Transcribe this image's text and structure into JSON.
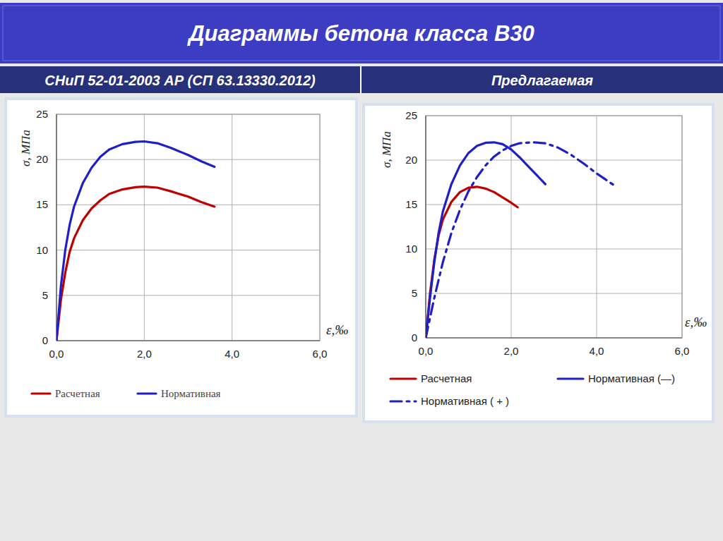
{
  "header": {
    "title": "Диаграммы бетона класса В30"
  },
  "chart_data": [
    {
      "type": "line",
      "title": "СНиП 52-01-2003 АР (СП 63.13330.2012)",
      "x_label": "ε,‰",
      "y_label": "σ, МПа",
      "xlim": [
        0,
        6
      ],
      "ylim": [
        0,
        25
      ],
      "xticks": [
        {
          "value": 0,
          "label": "0,0"
        },
        {
          "value": 2,
          "label": "2,0"
        },
        {
          "value": 4,
          "label": "4,0"
        },
        {
          "value": 6,
          "label": "6,0"
        }
      ],
      "yticks": [
        0,
        5,
        10,
        15,
        20,
        25
      ],
      "grid": true,
      "legend": "bottom",
      "series": [
        {
          "name": "Расчетная",
          "color": "#c00000",
          "line_style": "solid",
          "x": [
            0,
            0.1,
            0.2,
            0.3,
            0.4,
            0.6,
            0.8,
            1.0,
            1.2,
            1.5,
            1.8,
            2.0,
            2.3,
            2.6,
            3.0,
            3.3,
            3.6
          ],
          "values": [
            0,
            4.5,
            7.5,
            9.8,
            11.3,
            13.3,
            14.6,
            15.5,
            16.2,
            16.7,
            16.95,
            17.0,
            16.9,
            16.5,
            15.9,
            15.3,
            14.8
          ]
        },
        {
          "name": "Нормативная",
          "color": "#1f1fc8",
          "line_style": "solid",
          "x": [
            0,
            0.1,
            0.2,
            0.3,
            0.4,
            0.6,
            0.8,
            1.0,
            1.2,
            1.5,
            1.8,
            2.0,
            2.3,
            2.6,
            3.0,
            3.3,
            3.6
          ],
          "values": [
            0,
            6,
            10,
            12.8,
            14.8,
            17.4,
            19.1,
            20.3,
            21.1,
            21.7,
            21.95,
            22.0,
            21.8,
            21.3,
            20.5,
            19.8,
            19.2
          ]
        }
      ]
    },
    {
      "type": "line",
      "title": "Предлагаемая",
      "x_label": "ε,‰",
      "y_label": "σ, МПа",
      "xlim": [
        0,
        6
      ],
      "ylim": [
        0,
        25
      ],
      "xticks": [
        {
          "value": 0,
          "label": "0,0"
        },
        {
          "value": 2,
          "label": "2,0"
        },
        {
          "value": 4,
          "label": "4,0"
        },
        {
          "value": 6,
          "label": "6,0"
        }
      ],
      "yticks": [
        0,
        5,
        10,
        15,
        20,
        25
      ],
      "grid": true,
      "legend": "bottom",
      "series": [
        {
          "name": "Расчетная",
          "color": "#c00000",
          "line_style": "solid",
          "x": [
            0,
            0.1,
            0.2,
            0.3,
            0.4,
            0.6,
            0.8,
            1.0,
            1.2,
            1.4,
            1.6,
            1.8,
            2.0,
            2.15
          ],
          "values": [
            0,
            5,
            8.8,
            11.5,
            13.3,
            15.3,
            16.4,
            16.9,
            17.0,
            16.8,
            16.4,
            15.8,
            15.2,
            14.7
          ]
        },
        {
          "name": "Нормативная (—)",
          "color": "#1f1fc8",
          "line_style": "solid",
          "x": [
            0,
            0.1,
            0.2,
            0.3,
            0.4,
            0.6,
            0.8,
            1.0,
            1.2,
            1.4,
            1.6,
            1.8,
            2.0,
            2.2,
            2.4,
            2.6,
            2.8
          ],
          "values": [
            0,
            4.5,
            8.5,
            11.8,
            14.2,
            17.3,
            19.4,
            20.8,
            21.6,
            21.95,
            22.0,
            21.8,
            21.2,
            20.3,
            19.3,
            18.3,
            17.3
          ]
        },
        {
          "name": "Нормативная ( + )",
          "color": "#1f1fc8",
          "line_style": "dash-dot",
          "x": [
            0,
            0.2,
            0.4,
            0.6,
            0.8,
            1.0,
            1.2,
            1.4,
            1.6,
            1.8,
            2.0,
            2.2,
            2.5,
            2.8,
            3.1,
            3.4,
            3.7,
            4.0,
            4.4
          ],
          "values": [
            0,
            4.5,
            8.5,
            11.8,
            14.4,
            16.5,
            18.1,
            19.4,
            20.4,
            21.1,
            21.6,
            21.9,
            22.0,
            21.9,
            21.4,
            20.6,
            19.6,
            18.5,
            17.2
          ]
        }
      ]
    }
  ]
}
